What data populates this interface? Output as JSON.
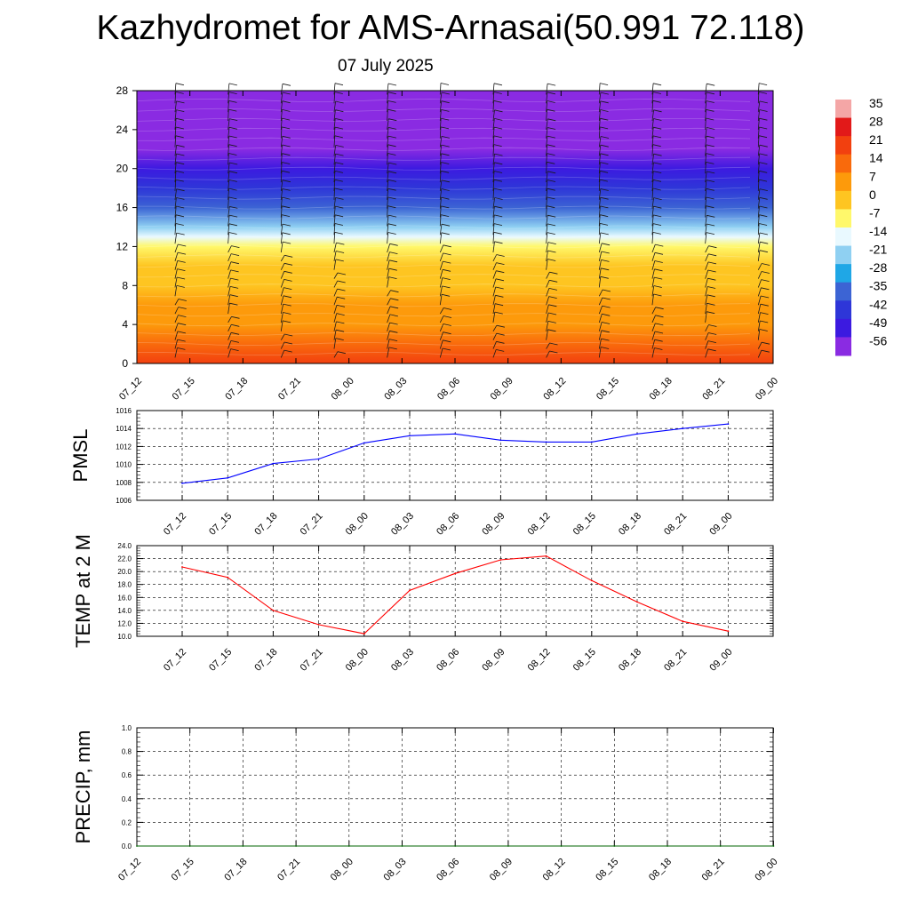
{
  "title": "Kazhydromet for AMS-Arnasai(50.991 72.118)",
  "subtitle": "07 July 2025",
  "chart_data": [
    {
      "type": "heatmap",
      "title": "",
      "xlabel": "",
      "ylabel": "",
      "x_ticks": [
        "07_12",
        "07_15",
        "07_18",
        "07_21",
        "08_00",
        "08_03",
        "08_06",
        "08_09",
        "08_12",
        "08_15",
        "08_18",
        "08_21",
        "09_00"
      ],
      "y_ticks": [
        0,
        4,
        8,
        12,
        16,
        20,
        24,
        28
      ],
      "ylim": [
        0,
        28
      ],
      "levels_y": [
        0,
        2,
        4,
        6,
        8,
        10,
        12,
        13,
        14,
        16,
        18,
        20,
        22,
        24,
        26,
        28
      ],
      "temperature_profile": [
        22,
        17,
        13,
        9,
        5,
        1,
        -3,
        -9,
        -20,
        -32,
        -40,
        -45,
        -50,
        -55,
        -53,
        -50
      ],
      "colorbar": {
        "labels": [
          35,
          28,
          21,
          14,
          7,
          0,
          -7,
          -14,
          -21,
          -28,
          -35,
          -42,
          -49,
          -56
        ],
        "colors": [
          "#f4a6a6",
          "#e21919",
          "#f2400f",
          "#f96a0c",
          "#fd9a0b",
          "#fec521",
          "#fff86b",
          "#e9f9ff",
          "#8fd0f2",
          "#1fa7e6",
          "#3c64d4",
          "#2e36d8",
          "#3c1ae0",
          "#8a2be2"
        ]
      },
      "wind_barbs": "shown"
    },
    {
      "type": "line",
      "ylabel": "PMSL",
      "x": [
        "07_12",
        "07_15",
        "07_18",
        "07_21",
        "08_00",
        "08_03",
        "08_06",
        "08_09",
        "08_12",
        "08_15",
        "08_18",
        "08_21",
        "09_00"
      ],
      "series": [
        {
          "values": [
            1007.9,
            1008.5,
            1010.1,
            1010.6,
            1012.4,
            1013.2,
            1013.4,
            1012.7,
            1012.5,
            1012.5,
            1013.4,
            1014.0,
            1014.5
          ],
          "color": "#0000ff"
        }
      ],
      "ylim": [
        1006,
        1016
      ],
      "y_ticks": [
        "1006",
        "1008",
        "1010",
        "1012",
        "1014",
        "1016"
      ],
      "grid": true
    },
    {
      "type": "line",
      "ylabel": "TEMP at 2 M",
      "x": [
        "07_12",
        "07_15",
        "07_18",
        "07_21",
        "08_00",
        "08_03",
        "08_06",
        "08_09",
        "08_12",
        "08_15",
        "08_18",
        "08_21",
        "09_00"
      ],
      "series": [
        {
          "values": [
            20.7,
            19.1,
            14.0,
            11.8,
            10.4,
            17.1,
            19.7,
            21.8,
            22.4,
            18.6,
            15.3,
            12.3,
            10.8
          ],
          "color": "#ff0000"
        }
      ],
      "ylim": [
        10,
        24
      ],
      "y_ticks": [
        "10.0",
        "12.0",
        "14.0",
        "16.0",
        "18.0",
        "20.0",
        "22.0",
        "24.0"
      ],
      "grid": true
    },
    {
      "type": "line",
      "ylabel": "PRECIP, mm",
      "x": [
        "07_12",
        "07_15",
        "07_18",
        "07_21",
        "08_00",
        "08_03",
        "08_06",
        "08_09",
        "08_12",
        "08_15",
        "08_18",
        "08_21",
        "09_00"
      ],
      "series": [
        {
          "values": [
            0,
            0,
            0,
            0,
            0,
            0,
            0,
            0,
            0,
            0,
            0,
            0,
            0
          ],
          "color": "#006400"
        }
      ],
      "ylim": [
        0,
        1
      ],
      "y_ticks": [
        "0.0",
        "0.2",
        "0.4",
        "0.6",
        "0.8",
        "1.0"
      ],
      "grid": true
    }
  ]
}
